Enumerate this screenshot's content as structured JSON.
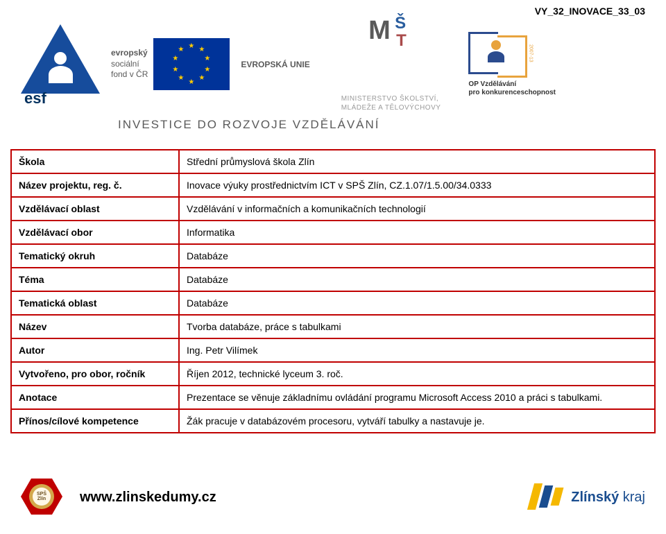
{
  "header_code": "VY_32_INOVACE_33_03",
  "banner": {
    "esf_label": "esf",
    "eu_text_line1": "evropský",
    "eu_text_line2": "sociální",
    "eu_text_line3": "fond v ČR",
    "eu_label": "EVROPSKÁ UNIE",
    "ministry_line1": "MINISTERSTVO ŠKOLSTVÍ,",
    "ministry_line2": "MLÁDEŽE A TĚLOVÝCHOVY",
    "op_line1": "OP Vzdělávání",
    "op_line2": "pro konkurenceschopnost",
    "op_year": "2007-13",
    "invest": "INVESTICE DO ROZVOJE VZDĚLÁVÁNÍ"
  },
  "table": {
    "rows": [
      {
        "label": "Škola",
        "value": "Střední průmyslová škola Zlín"
      },
      {
        "label": "Název projektu, reg. č.",
        "value": "Inovace výuky prostřednictvím ICT v SPŠ Zlín, CZ.1.07/1.5.00/34.0333"
      },
      {
        "label": "Vzdělávací oblast",
        "value": "Vzdělávání v informačních a komunikačních technologií"
      },
      {
        "label": "Vzdělávací obor",
        "value": "Informatika"
      },
      {
        "label": "Tematický okruh",
        "value": "Databáze"
      },
      {
        "label": "Téma",
        "value": "Databáze"
      },
      {
        "label": "Tematická oblast",
        "value": "Databáze"
      },
      {
        "label": "Název",
        "value": "Tvorba databáze, práce s tabulkami"
      },
      {
        "label": "Autor",
        "value": "Ing. Petr Vilímek"
      },
      {
        "label": "Vytvořeno, pro obor, ročník",
        "value": "Říjen 2012, technické lyceum 3. roč."
      },
      {
        "label": "Anotace",
        "value": "Prezentace se věnuje základnímu ovládání programu Microsoft Access 2010 a práci s tabulkami."
      },
      {
        "label": "Přínos/cílové kompetence",
        "value": "Žák pracuje v databázovém procesoru, vytváří tabulky a nastavuje je."
      }
    ],
    "border_color": "#c00000",
    "label_fontsize": 14,
    "value_fontsize": 14
  },
  "footer": {
    "sps_label": "SPŠ Zlín",
    "url": "www.zlinskedumy.cz",
    "zlin_bold": "Zlínský",
    "zlin_rest": " kraj"
  },
  "colors": {
    "brand_red": "#c00000",
    "eu_blue": "#003399",
    "eu_gold": "#ffcc00",
    "text_gray": "#5a5a5a",
    "zlin_yellow": "#f5b800",
    "zlin_blue": "#1a4d8f"
  }
}
